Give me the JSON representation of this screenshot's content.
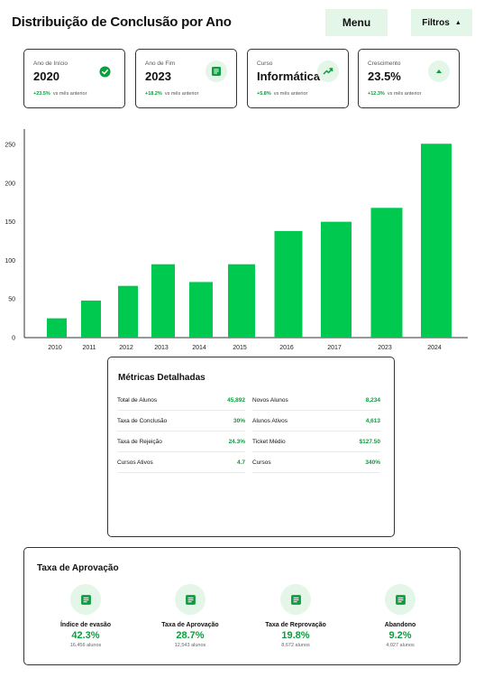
{
  "header": {
    "title": "Distribuição de Conclusão por Ano",
    "menu_label": "Menu",
    "filters_label": "Filtros",
    "filters_caret": "▲"
  },
  "cards": [
    {
      "label": "Ano de Início",
      "value": "2020",
      "delta_pct": "+23.5%",
      "delta_text": "vs mês anterior",
      "icon": "check-circle-icon"
    },
    {
      "label": "Ano de Fim",
      "value": "2023",
      "delta_pct": "+18.2%",
      "delta_text": "vs mês anterior",
      "icon": "document-icon"
    },
    {
      "label": "Curso",
      "value": "Informática",
      "delta_pct": "+5.8%",
      "delta_text": "vs mês anterior",
      "icon": "trending-up-icon"
    },
    {
      "label": "Crescimento",
      "value": "23.5%",
      "delta_pct": "+12.3%",
      "delta_text": "vs mês anterior",
      "icon": "arrow-up-icon"
    }
  ],
  "colors": {
    "accent": "#00c94f",
    "accent_light": "#e3f6e8",
    "positive": "#0a9e3c"
  },
  "chart_data": {
    "type": "bar",
    "categories": [
      "2010",
      "2011",
      "2012",
      "2013",
      "2014",
      "2015",
      "2016",
      "2017",
      "2023",
      "2024"
    ],
    "values": [
      25,
      48,
      67,
      95,
      72,
      95,
      138,
      150,
      168,
      251
    ],
    "ylim": [
      0,
      270
    ],
    "yticks": [
      0,
      50,
      100,
      150,
      200,
      250
    ],
    "color": "#00c94f",
    "grid": false
  },
  "metrics": {
    "title": "Métricas Detalhadas",
    "left": [
      {
        "label": "Total de Alunos",
        "value": "45,892"
      },
      {
        "label": "Taxa de Conclusão",
        "value": "30%"
      },
      {
        "label": "Taxa de Rejeição",
        "value": "24.3%"
      },
      {
        "label": "Cursos Ativos",
        "value": "4.7"
      }
    ],
    "right": [
      {
        "label": "Novos Alunos",
        "value": "8,234"
      },
      {
        "label": "Alunos Ativos",
        "value": "4,613"
      },
      {
        "label": "Ticket Médio",
        "value": "$127.50"
      },
      {
        "label": "Cursos",
        "value": "340%"
      }
    ]
  },
  "rates": {
    "title": "Taxa de Aprovação",
    "items": [
      {
        "name": "Índice de evasão",
        "percent": "42.3%",
        "count": "16,456 alunos",
        "icon": "document-icon"
      },
      {
        "name": "Taxa de Aprovação",
        "percent": "28.7%",
        "count": "12,543 alunos",
        "icon": "document-icon"
      },
      {
        "name": "Taxa de Reprovação",
        "percent": "19.8%",
        "count": "8,672 alunos",
        "icon": "document-icon"
      },
      {
        "name": "Abandono",
        "percent": "9.2%",
        "count": "4,027 alunos",
        "icon": "document-icon"
      }
    ]
  }
}
